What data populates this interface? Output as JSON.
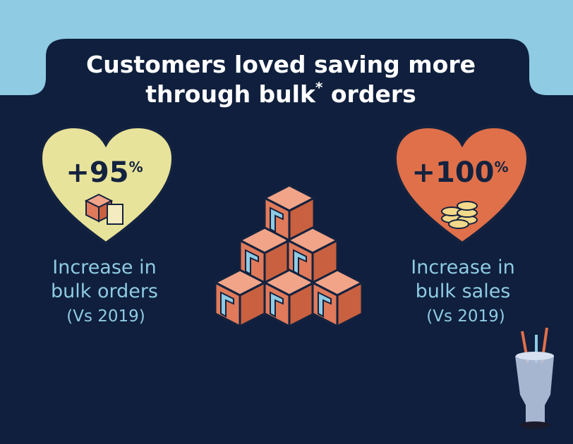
{
  "header": {
    "line1": "Customers loved saving more",
    "line2_start": "through bulk",
    "line2_mark": "*",
    "line2_end": " orders"
  },
  "stats": [
    {
      "number": "+95",
      "unit": "%",
      "line1": "Increase in",
      "line2": "bulk orders",
      "line3": "(Vs 2019)"
    },
    {
      "number": "+100",
      "unit": "%",
      "line1": "Increase in",
      "line2": "bulk sales",
      "line3": "(Vs 2019)"
    }
  ]
}
